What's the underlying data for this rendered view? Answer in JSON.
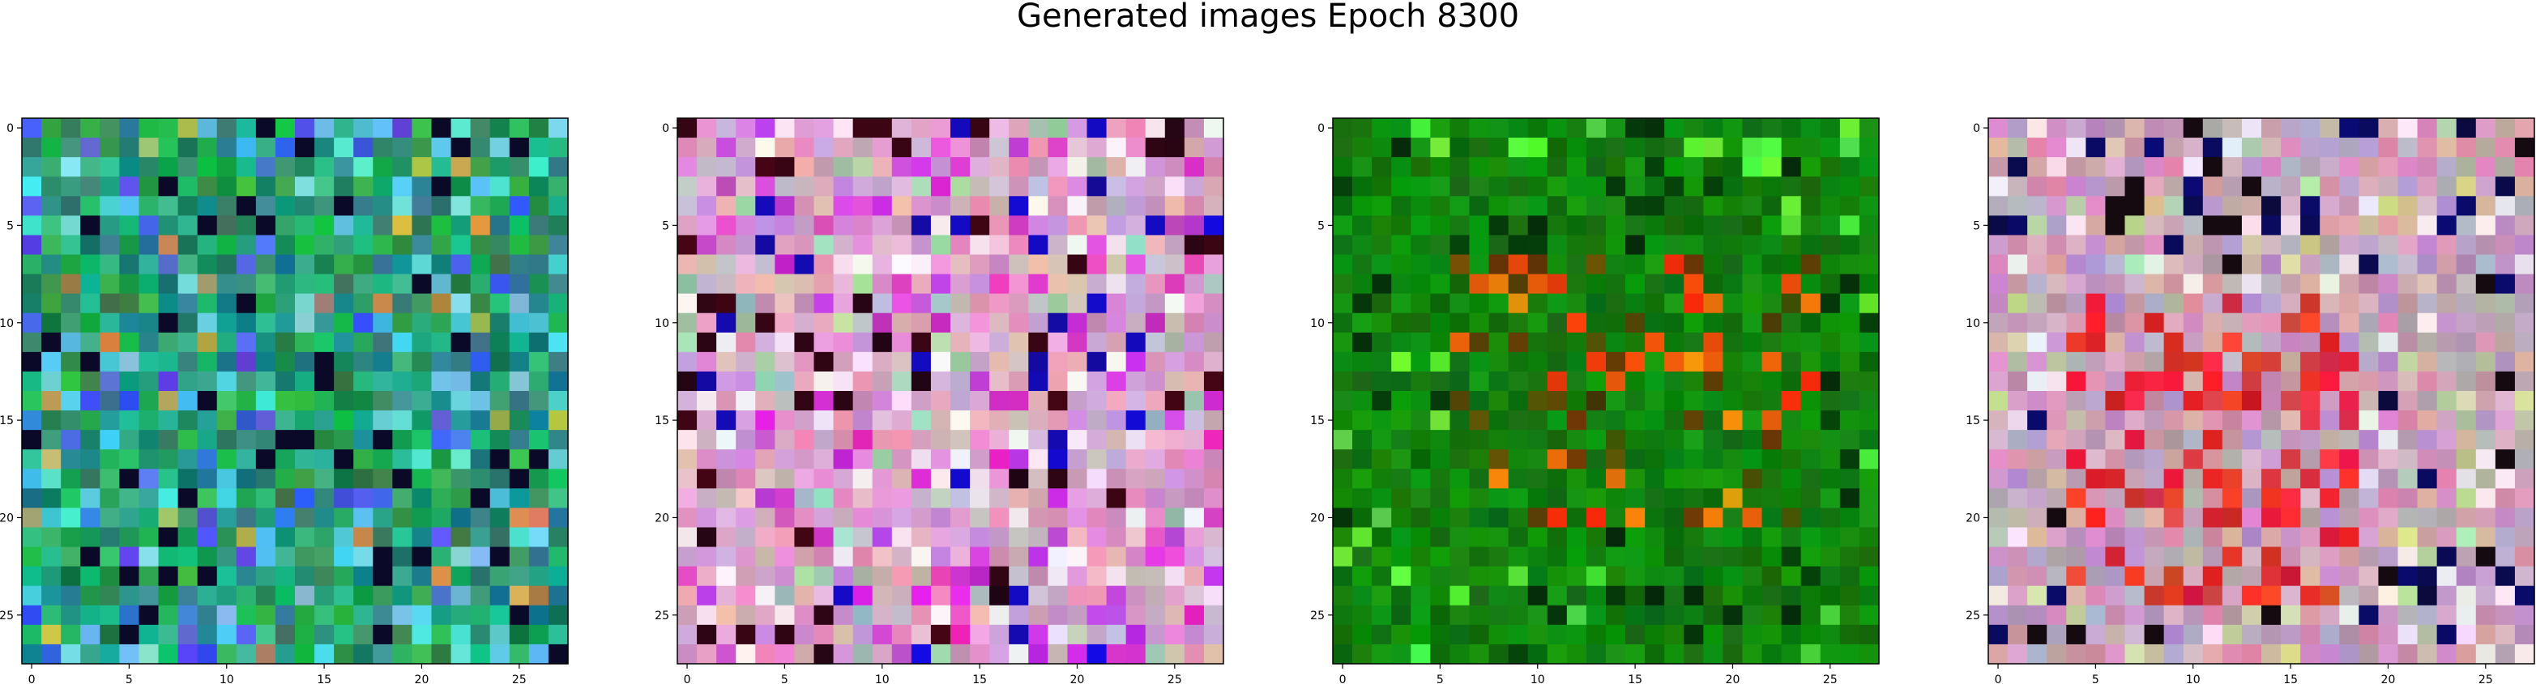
{
  "figure": {
    "title": "Generated images Epoch 8300"
  },
  "panels": [
    {
      "palette": "teal-green",
      "base": "#1a8a4a"
    },
    {
      "palette": "pink-lilac",
      "base": "#c98fc0"
    },
    {
      "palette": "green",
      "base": "#0b7d0b"
    },
    {
      "palette": "pink-mauve",
      "base": "#c4a0b4"
    }
  ],
  "axes": {
    "x_ticks": [
      "0",
      "5",
      "10",
      "15",
      "20",
      "25"
    ],
    "y_ticks": [
      "0",
      "5",
      "10",
      "15",
      "20",
      "25"
    ],
    "grid_size": 28
  }
}
